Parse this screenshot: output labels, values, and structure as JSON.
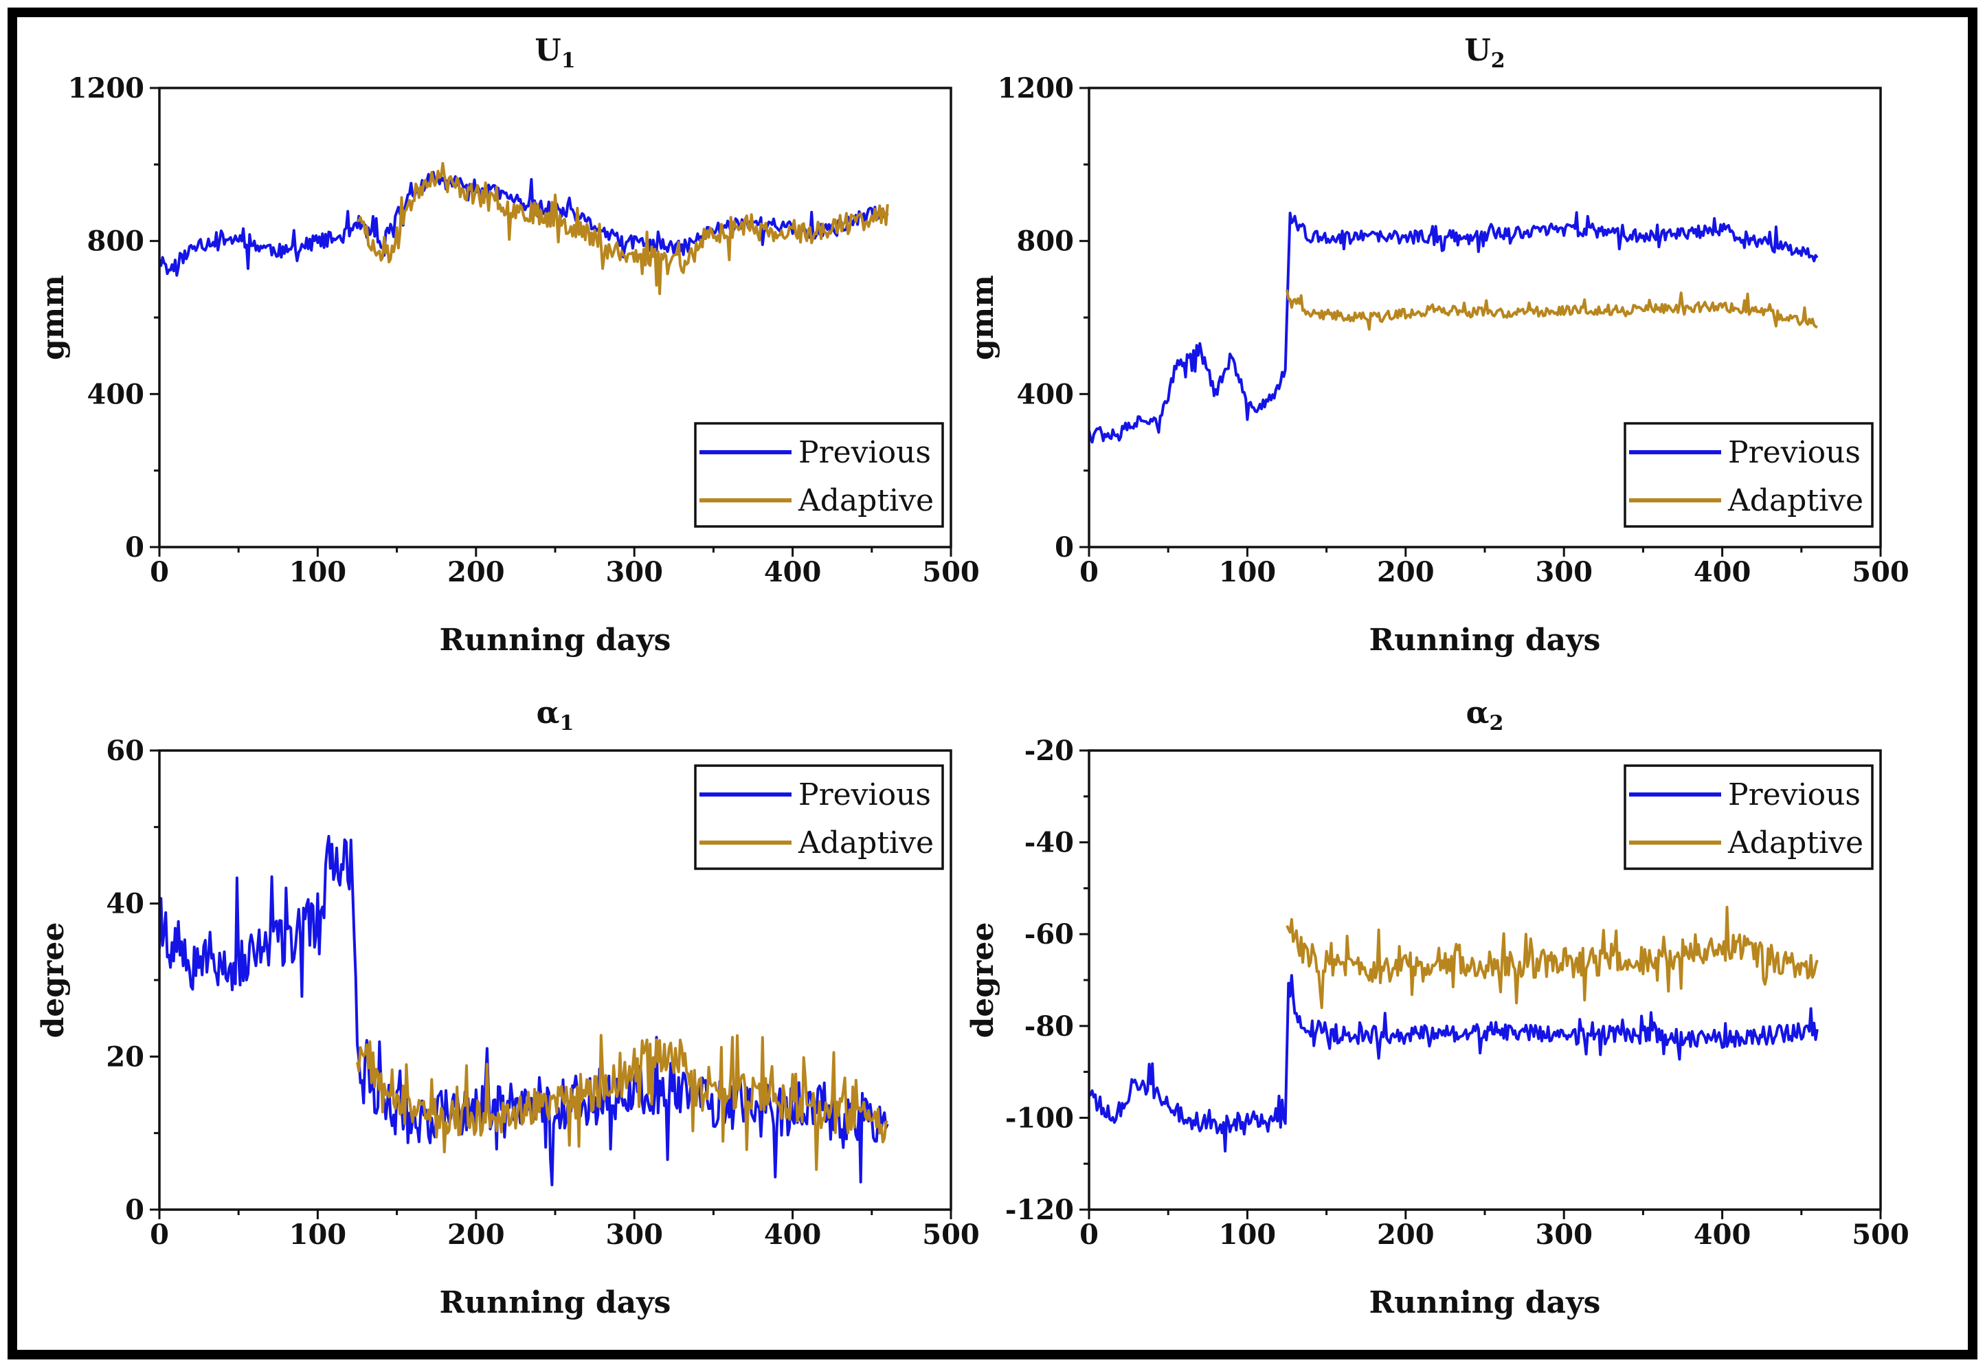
{
  "figure": {
    "colors": {
      "previous": "#1414e6",
      "adaptive": "#b8861e",
      "axis": "#111111",
      "frame": "#000000"
    }
  },
  "chart_data": [
    {
      "type": "line",
      "id": "u1",
      "title": {
        "main": "U",
        "sub": "1"
      },
      "xlabel": "Running days",
      "ylabel": "gmm",
      "xlim": [
        0,
        500
      ],
      "ylim": [
        0,
        1200
      ],
      "xticks": [
        0,
        100,
        200,
        300,
        400,
        500
      ],
      "yticks": [
        0,
        400,
        800,
        1200
      ],
      "legend": {
        "position": "bottom-right",
        "entries": [
          "Previous",
          "Adaptive"
        ]
      },
      "series": [
        {
          "name": "Previous",
          "color": "#1414e6",
          "x_start": 0,
          "x_end": 460,
          "keypoints": [
            [
              0,
              760
            ],
            [
              5,
              720
            ],
            [
              20,
              780
            ],
            [
              40,
              810
            ],
            [
              60,
              790
            ],
            [
              80,
              770
            ],
            [
              100,
              800
            ],
            [
              115,
              810
            ],
            [
              125,
              850
            ],
            [
              140,
              790
            ],
            [
              155,
              900
            ],
            [
              170,
              960
            ],
            [
              190,
              950
            ],
            [
              210,
              930
            ],
            [
              230,
              900
            ],
            [
              250,
              880
            ],
            [
              270,
              850
            ],
            [
              290,
              800
            ],
            [
              310,
              790
            ],
            [
              330,
              780
            ],
            [
              350,
              830
            ],
            [
              370,
              850
            ],
            [
              390,
              840
            ],
            [
              410,
              820
            ],
            [
              430,
              840
            ],
            [
              450,
              870
            ],
            [
              460,
              880
            ]
          ],
          "noise": 38,
          "seed": 11
        },
        {
          "name": "Adaptive",
          "color": "#b8861e",
          "x_start": 125,
          "x_end": 460,
          "keypoints": [
            [
              125,
              860
            ],
            [
              135,
              780
            ],
            [
              145,
              760
            ],
            [
              155,
              880
            ],
            [
              170,
              970
            ],
            [
              190,
              940
            ],
            [
              210,
              900
            ],
            [
              230,
              880
            ],
            [
              250,
              860
            ],
            [
              270,
              820
            ],
            [
              290,
              760
            ],
            [
              310,
              760
            ],
            [
              330,
              740
            ],
            [
              350,
              820
            ],
            [
              370,
              840
            ],
            [
              390,
              810
            ],
            [
              410,
              820
            ],
            [
              430,
              840
            ],
            [
              450,
              860
            ],
            [
              460,
              870
            ]
          ],
          "noise": 55,
          "seed": 23
        }
      ]
    },
    {
      "type": "line",
      "id": "u2",
      "title": {
        "main": "U",
        "sub": "2"
      },
      "xlabel": "Running days",
      "ylabel": "gmm",
      "xlim": [
        0,
        500
      ],
      "ylim": [
        0,
        1200
      ],
      "xticks": [
        0,
        100,
        200,
        300,
        400,
        500
      ],
      "yticks": [
        0,
        400,
        800,
        1200
      ],
      "legend": {
        "position": "bottom-right",
        "entries": [
          "Previous",
          "Adaptive"
        ]
      },
      "series": [
        {
          "name": "Previous",
          "color": "#1414e6",
          "x_start": 0,
          "x_end": 460,
          "keypoints": [
            [
              0,
              300
            ],
            [
              20,
              300
            ],
            [
              35,
              340
            ],
            [
              45,
              330
            ],
            [
              55,
              470
            ],
            [
              70,
              520
            ],
            [
              80,
              400
            ],
            [
              90,
              500
            ],
            [
              100,
              360
            ],
            [
              115,
              380
            ],
            [
              124,
              470
            ],
            [
              127,
              860
            ],
            [
              140,
              810
            ],
            [
              200,
              810
            ],
            [
              260,
              820
            ],
            [
              300,
              830
            ],
            [
              350,
              810
            ],
            [
              400,
              830
            ],
            [
              420,
              800
            ],
            [
              460,
              760
            ]
          ],
          "noise": 34,
          "seed": 37
        },
        {
          "name": "Adaptive",
          "color": "#b8861e",
          "x_start": 125,
          "x_end": 460,
          "keypoints": [
            [
              125,
              660
            ],
            [
              140,
              610
            ],
            [
              180,
              600
            ],
            [
              220,
              620
            ],
            [
              260,
              610
            ],
            [
              300,
              620
            ],
            [
              350,
              620
            ],
            [
              400,
              630
            ],
            [
              430,
              610
            ],
            [
              460,
              580
            ]
          ],
          "noise": 26,
          "seed": 41
        }
      ]
    },
    {
      "type": "line",
      "id": "alpha1",
      "title": {
        "main": "α",
        "sub": "1"
      },
      "xlabel": "Running days",
      "ylabel": "degree",
      "xlim": [
        0,
        500
      ],
      "ylim": [
        0,
        60
      ],
      "xticks": [
        0,
        100,
        200,
        300,
        400,
        500
      ],
      "yticks": [
        0,
        20,
        40,
        60
      ],
      "legend": {
        "position": "top-right",
        "entries": [
          "Previous",
          "Adaptive"
        ]
      },
      "series": [
        {
          "name": "Previous",
          "color": "#1414e6",
          "x_start": 0,
          "x_end": 460,
          "keypoints": [
            [
              0,
              37
            ],
            [
              20,
              34
            ],
            [
              40,
              32
            ],
            [
              60,
              33
            ],
            [
              80,
              35
            ],
            [
              100,
              38
            ],
            [
              110,
              46
            ],
            [
              122,
              45
            ],
            [
              126,
              18
            ],
            [
              140,
              15
            ],
            [
              160,
              11
            ],
            [
              180,
              13
            ],
            [
              200,
              13
            ],
            [
              230,
              14
            ],
            [
              260,
              14
            ],
            [
              290,
              15
            ],
            [
              320,
              16
            ],
            [
              350,
              14
            ],
            [
              380,
              13
            ],
            [
              410,
              13
            ],
            [
              440,
              12
            ],
            [
              460,
              11
            ]
          ],
          "noise": 7,
          "seed": 53
        },
        {
          "name": "Adaptive",
          "color": "#b8861e",
          "x_start": 125,
          "x_end": 460,
          "keypoints": [
            [
              125,
              20
            ],
            [
              140,
              18
            ],
            [
              160,
              12
            ],
            [
              180,
              12
            ],
            [
              200,
              12
            ],
            [
              230,
              13
            ],
            [
              260,
              14
            ],
            [
              290,
              17
            ],
            [
              310,
              21
            ],
            [
              330,
              19
            ],
            [
              350,
              16
            ],
            [
              380,
              15
            ],
            [
              410,
              13
            ],
            [
              440,
              12
            ],
            [
              460,
              11
            ]
          ],
          "noise": 5,
          "seed": 67
        }
      ]
    },
    {
      "type": "line",
      "id": "alpha2",
      "title": {
        "main": "α",
        "sub": "2"
      },
      "xlabel": "Running days",
      "ylabel": "degree",
      "xlim": [
        0,
        500
      ],
      "ylim": [
        -120,
        -20
      ],
      "xticks": [
        0,
        100,
        200,
        300,
        400,
        500
      ],
      "yticks": [
        -120,
        -100,
        -80,
        -60,
        -40,
        -20
      ],
      "legend": {
        "position": "top-right",
        "entries": [
          "Previous",
          "Adaptive"
        ]
      },
      "series": [
        {
          "name": "Previous",
          "color": "#1414e6",
          "x_start": 0,
          "x_end": 460,
          "keypoints": [
            [
              0,
              -95
            ],
            [
              15,
              -100
            ],
            [
              30,
              -92
            ],
            [
              45,
              -95
            ],
            [
              60,
              -100
            ],
            [
              80,
              -102
            ],
            [
              100,
              -100
            ],
            [
              124,
              -102
            ],
            [
              126,
              -72
            ],
            [
              135,
              -80
            ],
            [
              160,
              -82
            ],
            [
              200,
              -82
            ],
            [
              260,
              -81
            ],
            [
              300,
              -82
            ],
            [
              350,
              -82
            ],
            [
              400,
              -83
            ],
            [
              430,
              -82
            ],
            [
              460,
              -81
            ]
          ],
          "noise": 4,
          "seed": 79
        },
        {
          "name": "Adaptive",
          "color": "#b8861e",
          "x_start": 125,
          "x_end": 460,
          "keypoints": [
            [
              125,
              -60
            ],
            [
              140,
              -65
            ],
            [
              180,
              -68
            ],
            [
              220,
              -66
            ],
            [
              260,
              -67
            ],
            [
              300,
              -66
            ],
            [
              340,
              -66
            ],
            [
              380,
              -65
            ],
            [
              410,
              -62
            ],
            [
              430,
              -66
            ],
            [
              460,
              -67
            ]
          ],
          "noise": 6,
          "seed": 83
        }
      ]
    }
  ]
}
